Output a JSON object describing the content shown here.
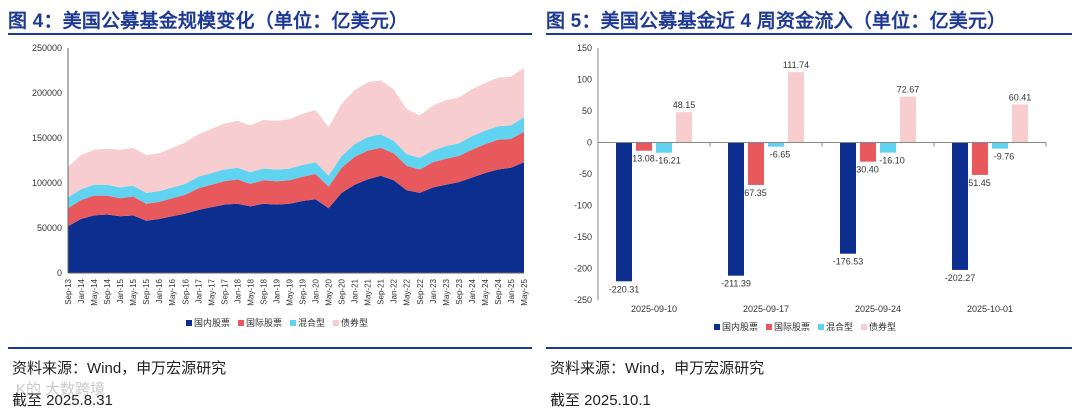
{
  "left": {
    "title": "图 4：美国公募基金规模变化（单位：亿美元）",
    "source": "资料来源：Wind，申万宏源研究",
    "asof": "截至 2025.8.31",
    "watermark": "K的 大数跨境"
  },
  "right": {
    "title": "图 5：美国公募基金近 4 周资金流入（单位：亿美元）",
    "source": "资料来源：Wind，申万宏源研究",
    "asof": "截至 2025.10.1"
  },
  "chart_data": [
    {
      "type": "area",
      "stacked": true,
      "title": "图 4：美国公募基金规模变化（单位：亿美元）",
      "x_tick_labels": [
        "Sep-13",
        "Jan-14",
        "May-14",
        "Sep-14",
        "Jan-15",
        "May-15",
        "Sep-15",
        "Jan-16",
        "May-16",
        "Sep-16",
        "Jan-17",
        "May-17",
        "Sep-17",
        "Jan-18",
        "May-18",
        "Sep-18",
        "Jan-19",
        "May-19",
        "Sep-19",
        "Jan-20",
        "May-20",
        "Sep-20",
        "Jan-21",
        "May-21",
        "Sep-21",
        "Jan-22",
        "May-22",
        "Sep-22",
        "Jan-23",
        "May-23",
        "Sep-23",
        "Jan-24",
        "May-24",
        "Sep-24",
        "Jan-25",
        "May-25"
      ],
      "ylim": [
        0,
        250000
      ],
      "yticks": [
        0,
        50000,
        100000,
        150000,
        200000,
        250000
      ],
      "legend_position": "bottom",
      "colors": [
        "#0b2e8f",
        "#e8595d",
        "#5fd3f0",
        "#f7cdd0"
      ],
      "series": [
        {
          "name": "国内股票",
          "values": [
            52000,
            60000,
            64000,
            65000,
            63000,
            64000,
            58000,
            60000,
            63000,
            66000,
            70000,
            73000,
            76000,
            77000,
            74000,
            77000,
            76000,
            77000,
            80000,
            82000,
            72000,
            89000,
            98000,
            104000,
            108000,
            103000,
            92000,
            89000,
            95000,
            98000,
            101000,
            106000,
            111000,
            115000,
            117000,
            123000
          ]
        },
        {
          "name": "国际股票",
          "values": [
            20000,
            21000,
            22000,
            21000,
            20000,
            21000,
            19000,
            19000,
            20000,
            21000,
            24000,
            25000,
            26000,
            27000,
            25000,
            26000,
            26000,
            26000,
            27000,
            28000,
            24000,
            28000,
            31000,
            32000,
            31000,
            30000,
            27000,
            26000,
            28000,
            29000,
            29000,
            31000,
            32000,
            33000,
            32000,
            34000
          ]
        },
        {
          "name": "混合型",
          "values": [
            12000,
            12000,
            12000,
            12000,
            12000,
            12000,
            12000,
            12000,
            12000,
            12000,
            13000,
            13000,
            13000,
            13000,
            13000,
            13000,
            13000,
            13000,
            13000,
            13000,
            12000,
            13000,
            14000,
            15000,
            15000,
            14000,
            13000,
            13000,
            13000,
            14000,
            14000,
            15000,
            15000,
            15000,
            15000,
            16000
          ]
        },
        {
          "name": "债券型",
          "values": [
            34000,
            38000,
            39000,
            40000,
            42000,
            42000,
            42000,
            42000,
            44000,
            46000,
            47000,
            49000,
            51000,
            52000,
            52000,
            54000,
            54000,
            55000,
            57000,
            58000,
            54000,
            58000,
            60000,
            61000,
            60000,
            57000,
            50000,
            47000,
            50000,
            51000,
            51000,
            52000,
            53000,
            54000,
            54000,
            55000
          ]
        }
      ]
    },
    {
      "type": "bar",
      "title": "图 5：美国公募基金近 4 周资金流入（单位：亿美元）",
      "categories": [
        "2025-09-10",
        "2025-09-17",
        "2025-09-24",
        "2025-10-01"
      ],
      "ylim": [
        -250,
        150
      ],
      "yticks": [
        -250,
        -200,
        -150,
        -100,
        -50,
        0,
        50,
        100,
        150
      ],
      "legend_position": "bottom",
      "colors": [
        "#0b2e8f",
        "#e8595d",
        "#5fd3f0",
        "#f7cdd0"
      ],
      "series": [
        {
          "name": "国内股票",
          "values": [
            -220.31,
            -211.39,
            -176.53,
            -202.27
          ]
        },
        {
          "name": "国际股票",
          "values": [
            -13.08,
            -67.35,
            -30.4,
            -51.45
          ]
        },
        {
          "name": "混合型",
          "values": [
            -16.21,
            -6.65,
            -16.1,
            -9.76
          ]
        },
        {
          "name": "债券型",
          "values": [
            48.15,
            111.74,
            72.67,
            60.41
          ]
        }
      ],
      "data_labels": [
        [
          "-220.31",
          "-211.39",
          "-176.53",
          "-202.27"
        ],
        [
          "-13.08",
          "-67.35",
          "-30.40",
          "-51.45"
        ],
        [
          "-16.21",
          "-6.65",
          "-16.10",
          "-9.76"
        ],
        [
          "48.15",
          "111.74",
          "72.67",
          "60.41"
        ]
      ]
    }
  ]
}
